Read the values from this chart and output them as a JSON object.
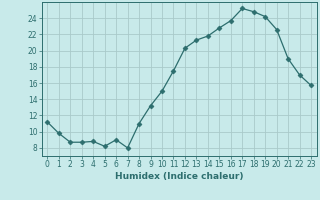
{
  "x": [
    0,
    1,
    2,
    3,
    4,
    5,
    6,
    7,
    8,
    9,
    10,
    11,
    12,
    13,
    14,
    15,
    16,
    17,
    18,
    19,
    20,
    21,
    22,
    23
  ],
  "y": [
    11.2,
    9.8,
    8.7,
    8.7,
    8.8,
    8.2,
    9.0,
    8.0,
    11.0,
    13.2,
    15.0,
    17.5,
    20.3,
    21.3,
    21.8,
    22.8,
    23.7,
    25.2,
    24.8,
    24.2,
    22.6,
    19.0,
    17.0,
    15.7
  ],
  "line_color": "#2d6e6e",
  "marker": "D",
  "markersize": 2.5,
  "bg_color": "#c8eaea",
  "grid_color": "#aacaca",
  "xlabel": "Humidex (Indice chaleur)",
  "xlim": [
    -0.5,
    23.5
  ],
  "ylim": [
    7,
    26
  ],
  "yticks": [
    8,
    10,
    12,
    14,
    16,
    18,
    20,
    22,
    24
  ],
  "xticks": [
    0,
    1,
    2,
    3,
    4,
    5,
    6,
    7,
    8,
    9,
    10,
    11,
    12,
    13,
    14,
    15,
    16,
    17,
    18,
    19,
    20,
    21,
    22,
    23
  ],
  "xlabel_fontsize": 6.5,
  "tick_fontsize": 5.5
}
